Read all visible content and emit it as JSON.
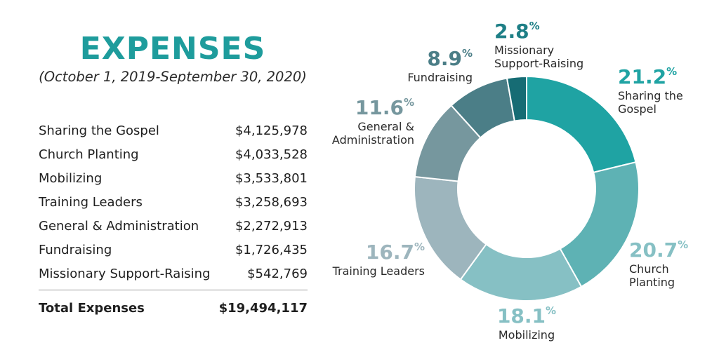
{
  "title": "EXPENSES",
  "subtitle": "(October 1, 2019-September 30, 2020)",
  "table": {
    "rows": [
      {
        "label": "Sharing the Gospel",
        "amount": "$4,125,978"
      },
      {
        "label": "Church Planting",
        "amount": "$4,033,528"
      },
      {
        "label": "Mobilizing",
        "amount": "$3,533,801"
      },
      {
        "label": "Training Leaders",
        "amount": "$3,258,693"
      },
      {
        "label": "General & Administration",
        "amount": "$2,272,913"
      },
      {
        "label": "Fundraising",
        "amount": "$1,726,435"
      },
      {
        "label": "Missionary Support-Raising",
        "amount": "$542,769"
      }
    ],
    "total_label": "Total Expenses",
    "total_amount": "$19,494,117"
  },
  "chart_data": {
    "type": "pie",
    "donut": true,
    "start_angle_deg": 0,
    "direction": "clockwise",
    "slices": [
      {
        "name": "Sharing the Gospel",
        "label_lines": [
          "Sharing the",
          "Gospel"
        ],
        "value": 21.2,
        "pct_text": "21.2",
        "color": "#1fa3a3"
      },
      {
        "name": "Church Planting",
        "label_lines": [
          "Church",
          "Planting"
        ],
        "value": 20.7,
        "pct_text": "20.7",
        "color": "#5eb2b4"
      },
      {
        "name": "Mobilizing",
        "label_lines": [
          "Mobilizing"
        ],
        "value": 18.1,
        "pct_text": "18.1",
        "color": "#86c0c4"
      },
      {
        "name": "Training Leaders",
        "label_lines": [
          "Training Leaders"
        ],
        "value": 16.7,
        "pct_text": "16.7",
        "color": "#9db5bd"
      },
      {
        "name": "General & Administration",
        "label_lines": [
          "General &",
          "Administration"
        ],
        "value": 11.6,
        "pct_text": "11.6",
        "color": "#76979e"
      },
      {
        "name": "Fundraising",
        "label_lines": [
          "Fundraising"
        ],
        "value": 8.9,
        "pct_text": "8.9",
        "color": "#4b7e87"
      },
      {
        "name": "Missionary Support-Raising",
        "label_lines": [
          "Missionary",
          "Support-Raising"
        ],
        "value": 2.8,
        "pct_text": "2.8",
        "color": "#166c74"
      }
    ],
    "label_colors": {
      "pct_dark": "#1e7f86",
      "pct_teal": "#1fa3a3",
      "pct_light": "#86c0c4",
      "pct_grey": "#9db5bd",
      "pct_mid": "#76979e",
      "pct_slate": "#4b7e87"
    },
    "percent_sign": "%"
  }
}
